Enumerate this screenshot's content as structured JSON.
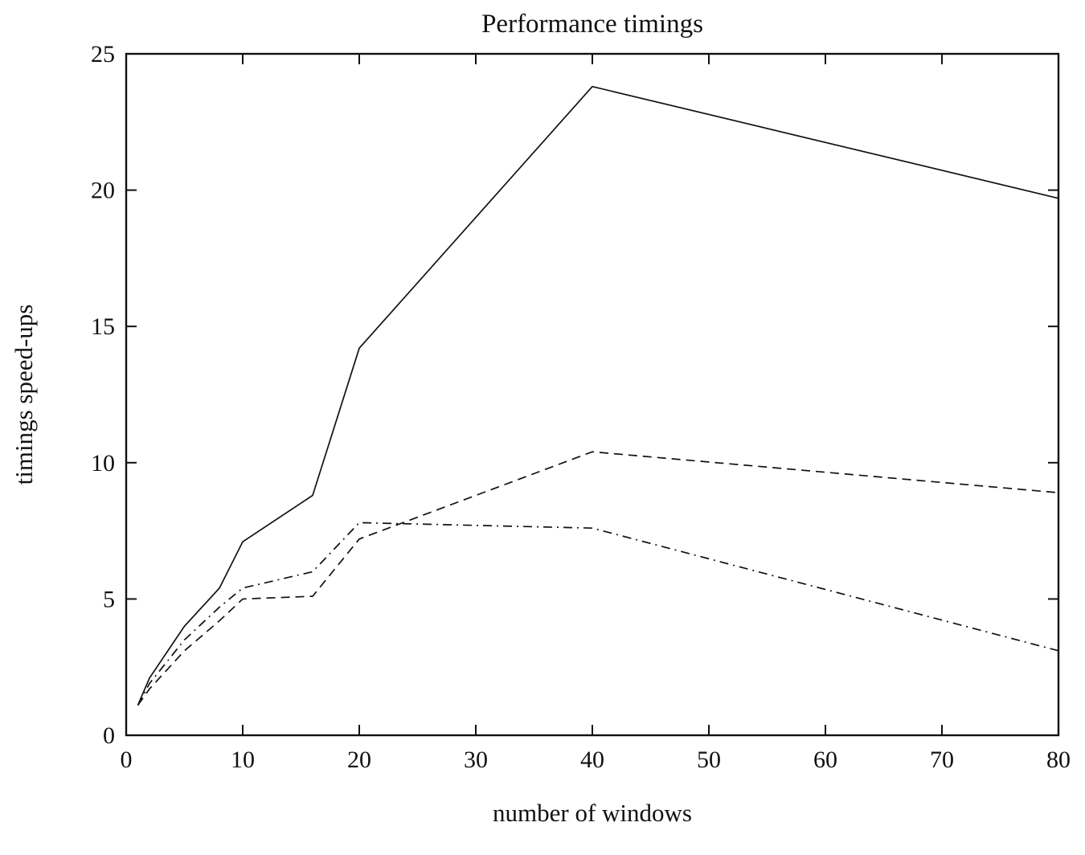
{
  "figure": {
    "background_color": "#ffffff",
    "line_color": "#111111"
  },
  "chart_data": {
    "type": "line",
    "title": "Performance timings",
    "xlabel": "number of windows",
    "ylabel": "timings speed-ups",
    "xlim": [
      0,
      80
    ],
    "ylim": [
      0,
      25
    ],
    "xticks": [
      0,
      10,
      20,
      30,
      40,
      50,
      60,
      70,
      80
    ],
    "yticks": [
      0,
      5,
      10,
      15,
      20,
      25
    ],
    "grid": false,
    "legend": "none",
    "box": "full-frame-ticks-inward",
    "series": [
      {
        "name": "solid-line",
        "style": "solid",
        "color": "#111111",
        "points": [
          [
            1,
            1.1
          ],
          [
            2,
            2.1
          ],
          [
            5,
            4.0
          ],
          [
            8,
            5.4
          ],
          [
            10,
            7.1
          ],
          [
            16,
            8.8
          ],
          [
            20,
            14.2
          ],
          [
            40,
            23.8
          ],
          [
            80,
            19.7
          ]
        ]
      },
      {
        "name": "dashed-line",
        "style": "dashed",
        "color": "#111111",
        "points": [
          [
            1,
            1.1
          ],
          [
            2,
            1.7
          ],
          [
            5,
            3.1
          ],
          [
            8,
            4.2
          ],
          [
            10,
            5.0
          ],
          [
            16,
            5.1
          ],
          [
            20,
            7.2
          ],
          [
            40,
            10.4
          ],
          [
            80,
            8.9
          ]
        ]
      },
      {
        "name": "dash-dot-line",
        "style": "dashdot",
        "color": "#111111",
        "points": [
          [
            1,
            1.1
          ],
          [
            2,
            1.9
          ],
          [
            5,
            3.5
          ],
          [
            8,
            4.7
          ],
          [
            10,
            5.4
          ],
          [
            16,
            6.0
          ],
          [
            20,
            7.8
          ],
          [
            40,
            7.6
          ],
          [
            80,
            3.1
          ]
        ]
      }
    ]
  }
}
